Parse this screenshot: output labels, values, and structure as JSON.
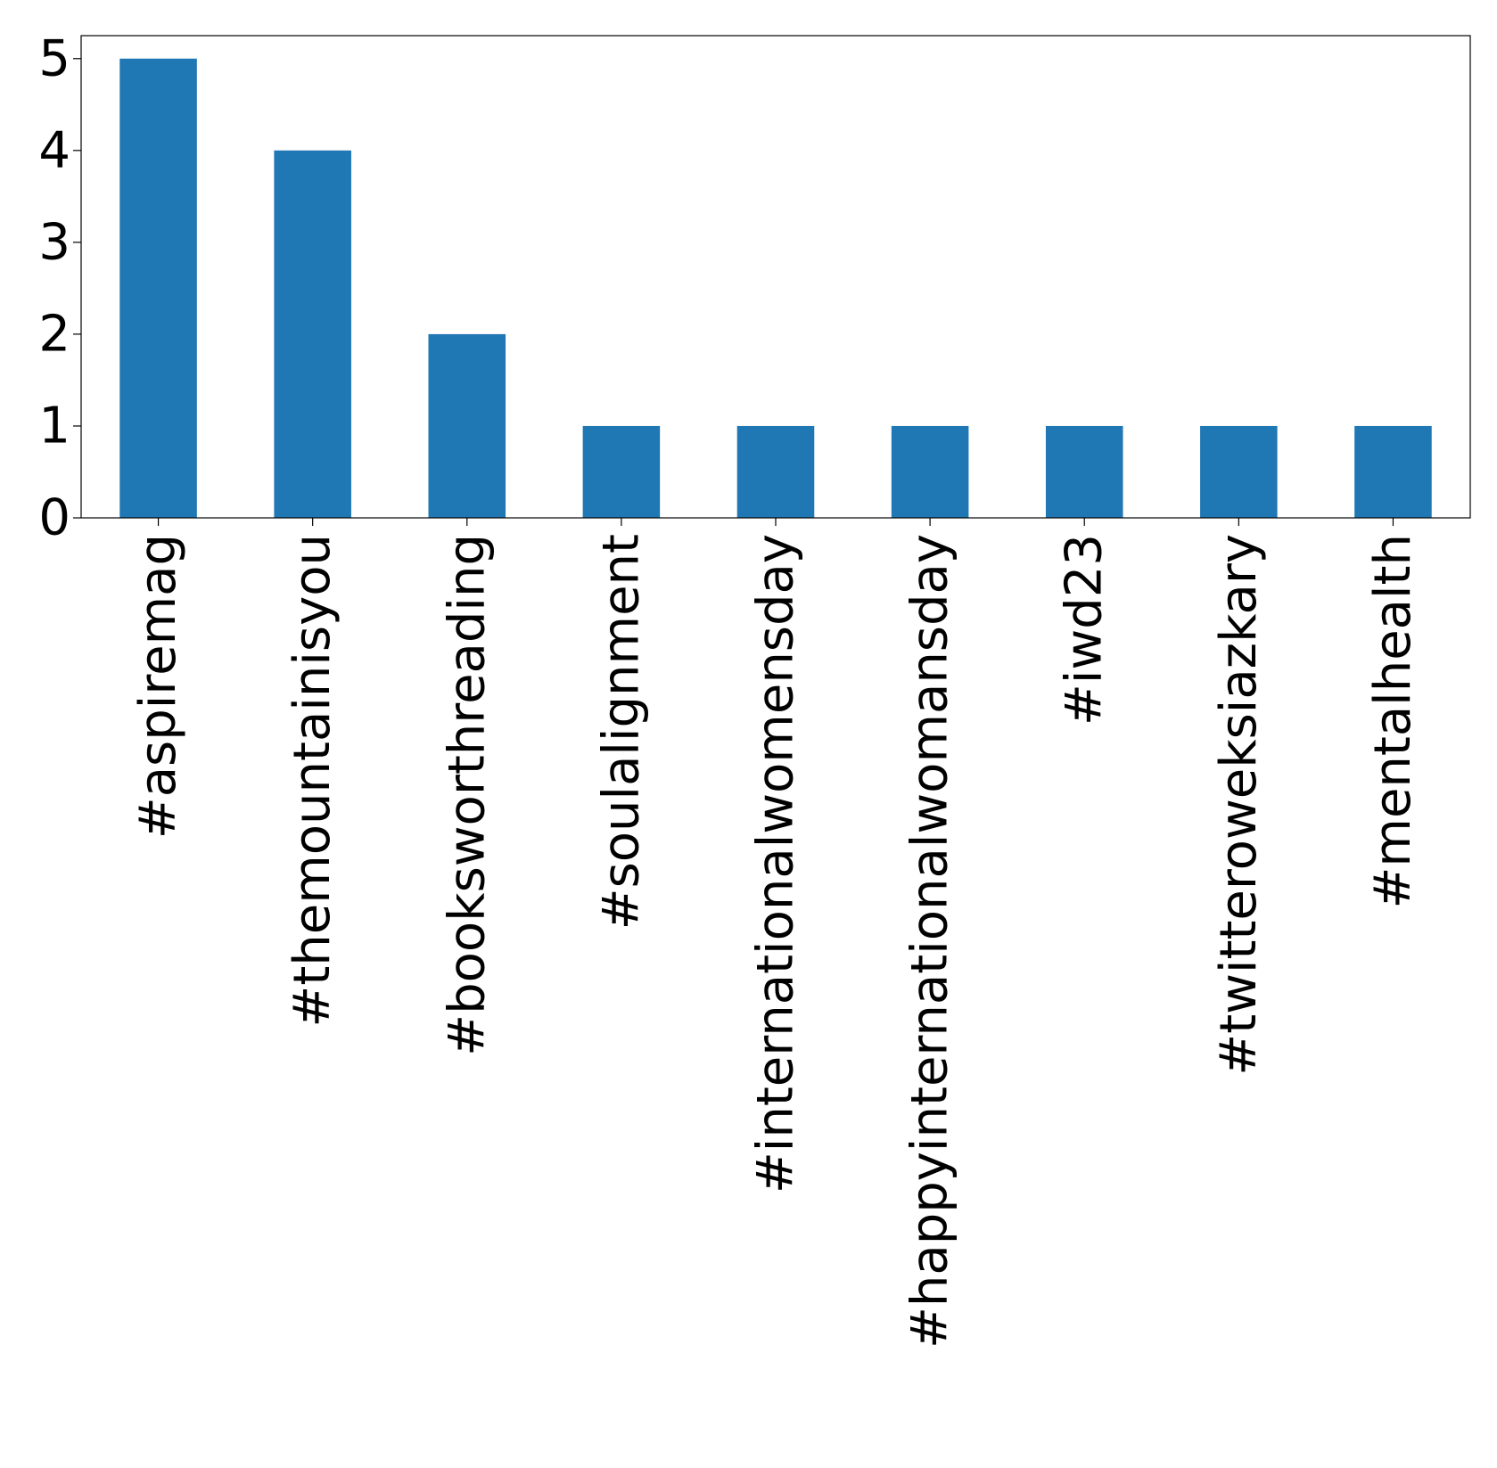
{
  "chart_data": {
    "type": "bar",
    "title": "",
    "xlabel": "",
    "ylabel": "",
    "categories": [
      "#aspiremag",
      "#themountainisyou",
      "#booksworthreading",
      "#soulalignment",
      "#internationalwomensday",
      "#happyinternationalwomansday",
      "#iwd23",
      "#twitteroweksiazkary",
      "#mentalhealth"
    ],
    "values": [
      5,
      4,
      2,
      1,
      1,
      1,
      1,
      1,
      1
    ],
    "ylim": [
      0,
      5.25
    ],
    "yticks": [
      0,
      1,
      2,
      3,
      4,
      5
    ],
    "bar_color": "#1f77b4",
    "grid": false,
    "legend": false
  }
}
